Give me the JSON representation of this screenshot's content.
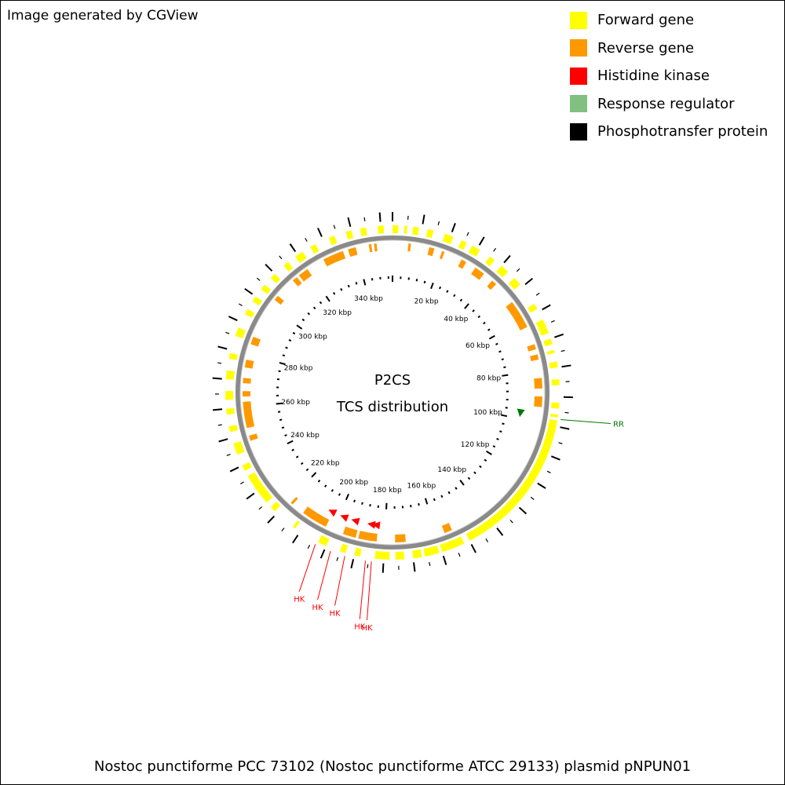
{
  "credit": "Image generated by CGView",
  "legend": [
    {
      "label": "Forward gene",
      "color": "#ffff00"
    },
    {
      "label": "Reverse gene",
      "color": "#ff9900"
    },
    {
      "label": "Histidine kinase",
      "color": "#ff0000"
    },
    {
      "label": "Response regulator",
      "color": "#80c080"
    },
    {
      "label": "Phosphotransfer protein",
      "color": "#000000"
    }
  ],
  "center": {
    "line1": "P2CS",
    "line2": "TCS distribution"
  },
  "caption": "Nostoc punctiforme PCC 73102 (Nostoc punctiforme ATCC 29133) plasmid pNPUN01",
  "sequence_length_kbp": 354,
  "tick_labels": [
    "20 kbp",
    "40 kbp",
    "60 kbp",
    "80 kbp",
    "100 kbp",
    "120 kbp",
    "140 kbp",
    "160 kbp",
    "180 kbp",
    "200 kbp",
    "220 kbp",
    "240 kbp",
    "260 kbp",
    "280 kbp",
    "300 kbp",
    "320 kbp",
    "340 kbp"
  ],
  "tick_values_kbp": [
    20,
    40,
    60,
    80,
    100,
    120,
    140,
    160,
    180,
    200,
    220,
    240,
    260,
    280,
    300,
    320,
    340
  ],
  "annotations": [
    {
      "label": "RR",
      "kbp": 97.5,
      "color": "#007700"
    },
    {
      "label": "HK",
      "kbp": 203.5,
      "color": "#ff0000"
    },
    {
      "label": "HK",
      "kbp": 198.0,
      "color": "#ff0000"
    },
    {
      "label": "HK",
      "kbp": 193.0,
      "color": "#ff0000"
    },
    {
      "label": "HK",
      "kbp": 186.0,
      "color": "#ff0000"
    },
    {
      "label": "HK",
      "kbp": 184.0,
      "color": "#ff0000"
    }
  ],
  "forward_genes_kbp": [
    [
      0,
      2
    ],
    [
      4,
      5
    ],
    [
      7,
      9
    ],
    [
      12,
      14
    ],
    [
      18,
      21
    ],
    [
      24,
      26
    ],
    [
      28,
      31
    ],
    [
      35,
      37
    ],
    [
      40,
      43
    ],
    [
      46,
      49
    ],
    [
      57,
      59
    ],
    [
      63,
      68
    ],
    [
      70,
      72
    ],
    [
      74,
      75
    ],
    [
      78,
      80
    ],
    [
      84,
      86
    ],
    [
      92,
      94
    ],
    [
      96,
      97
    ],
    [
      98,
      150
    ],
    [
      152,
      160
    ],
    [
      161,
      166
    ],
    [
      167,
      170
    ],
    [
      173,
      176
    ],
    [
      178,
      183
    ],
    [
      188,
      190
    ],
    [
      193,
      195
    ],
    [
      200,
      203
    ],
    [
      212,
      213
    ],
    [
      221,
      223
    ],
    [
      225,
      236
    ],
    [
      238,
      240
    ],
    [
      244,
      248
    ],
    [
      252,
      254
    ],
    [
      258,
      260
    ],
    [
      263,
      266
    ],
    [
      270,
      273
    ],
    [
      277,
      279
    ],
    [
      285,
      288
    ],
    [
      293,
      295
    ],
    [
      298,
      300
    ],
    [
      303,
      305
    ],
    [
      308,
      310
    ],
    [
      314,
      316
    ],
    [
      319,
      322
    ],
    [
      325,
      327
    ],
    [
      332,
      334
    ],
    [
      338,
      340
    ],
    [
      343,
      345
    ],
    [
      349,
      351
    ]
  ],
  "reverse_genes_kbp": [
    [
      6,
      7
    ],
    [
      14,
      16
    ],
    [
      19,
      20
    ],
    [
      27,
      29
    ],
    [
      33,
      37
    ],
    [
      41,
      43
    ],
    [
      52,
      63
    ],
    [
      70,
      72
    ],
    [
      74,
      76
    ],
    [
      83,
      87
    ],
    [
      90,
      94
    ],
    [
      154,
      157
    ],
    [
      172,
      176
    ],
    [
      183,
      190
    ],
    [
      191,
      196
    ],
    [
      203,
      213
    ],
    [
      218,
      219
    ],
    [
      247,
      249
    ],
    [
      252,
      262
    ],
    [
      264,
      266
    ],
    [
      269,
      271
    ],
    [
      275,
      278
    ],
    [
      284,
      287
    ],
    [
      303,
      305
    ],
    [
      313,
      315
    ],
    [
      316,
      320
    ],
    [
      327,
      335
    ],
    [
      337,
      340
    ],
    [
      345,
      346
    ],
    [
      347,
      348
    ]
  ],
  "kinase_markers_kbp": [
    184.0,
    186.0,
    193.0,
    198.0,
    203.5
  ],
  "regulator_markers_kbp": [
    97.5
  ]
}
